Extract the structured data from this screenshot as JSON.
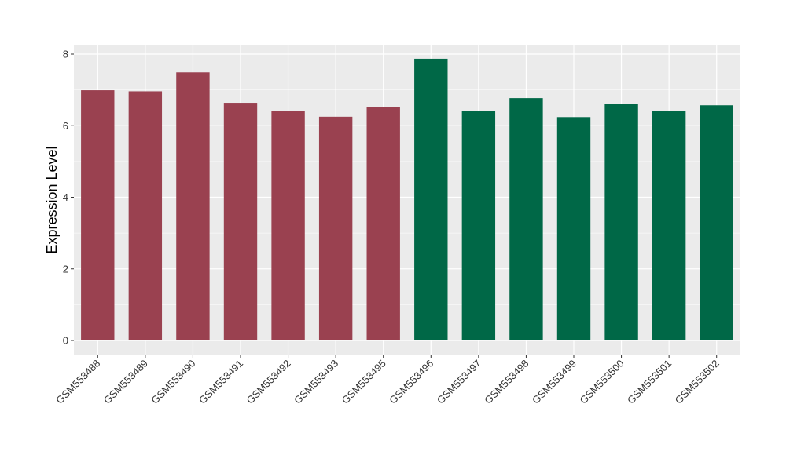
{
  "chart_data": {
    "type": "bar",
    "title": "",
    "xlabel": "",
    "ylabel": "Expression Level",
    "ylim": [
      0,
      8
    ],
    "yticks": [
      0,
      2,
      4,
      6,
      8
    ],
    "grid": true,
    "legend": "none",
    "panel_background": "#EBEBEB",
    "categories": [
      "GSM553488",
      "GSM553489",
      "GSM553490",
      "GSM553491",
      "GSM553492",
      "GSM553493",
      "GSM553495",
      "GSM553496",
      "GSM553497",
      "GSM553498",
      "GSM553499",
      "GSM553500",
      "GSM553501",
      "GSM553502"
    ],
    "values": [
      6.99,
      6.96,
      7.49,
      6.64,
      6.42,
      6.25,
      6.53,
      7.87,
      6.4,
      6.77,
      6.24,
      6.61,
      6.42,
      6.57
    ],
    "bar_colors": [
      "#9A4150",
      "#9A4150",
      "#9A4150",
      "#9A4150",
      "#9A4150",
      "#9A4150",
      "#9A4150",
      "#006847",
      "#006847",
      "#006847",
      "#006847",
      "#006847",
      "#006847",
      "#006847"
    ]
  }
}
